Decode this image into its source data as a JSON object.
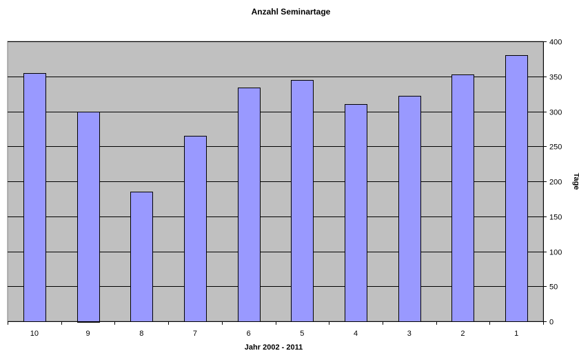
{
  "chart_data": {
    "type": "bar",
    "title": "Anzahl Seminartage",
    "xlabel": "Jahr 2002 - 2011",
    "ylabel": "Tage",
    "categories": [
      "10",
      "9",
      "8",
      "7",
      "6",
      "5",
      "4",
      "3",
      "2",
      "1"
    ],
    "values": [
      355,
      300,
      185,
      265,
      334,
      345,
      310,
      322,
      353,
      380
    ],
    "ylim": [
      0,
      400
    ],
    "yticks": [
      0,
      50,
      100,
      150,
      200,
      250,
      300,
      350,
      400
    ],
    "y_axis_side": "right",
    "grid": true,
    "legend": "none",
    "colors": {
      "bar_fill": "#9999ff",
      "bar_stroke": "#000000",
      "plot_background": "#c0c0c0",
      "gridline": "#000000"
    }
  }
}
